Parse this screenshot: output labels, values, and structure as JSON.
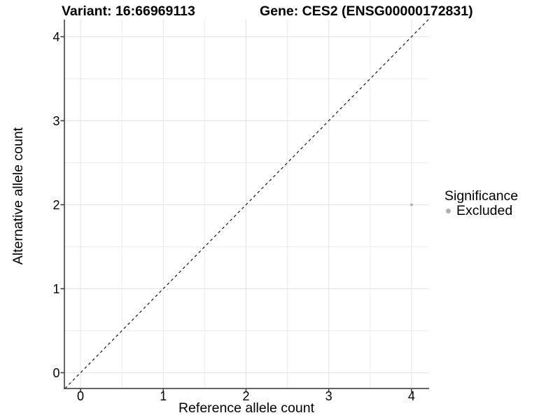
{
  "titles": {
    "variant": "Variant: 16:66969113",
    "gene": "Gene: CES2 (ENSG00000172831)"
  },
  "chart_data": {
    "type": "scatter",
    "title_left": "Variant: 16:66969113",
    "title_right": "Gene: CES2 (ENSG00000172831)",
    "xlabel": "Reference allele count",
    "ylabel": "Alternative allele count",
    "xlim": [
      -0.195,
      4.204
    ],
    "ylim": [
      -0.188,
      4.204
    ],
    "x_ticks": [
      0,
      1,
      2,
      3,
      4
    ],
    "y_ticks": [
      0,
      1,
      2,
      3,
      4
    ],
    "x_minor": [
      0.5,
      1.5,
      2.5,
      3.5
    ],
    "y_minor": [
      0.5,
      1.5,
      2.5,
      3.5
    ],
    "grid": true,
    "series": [
      {
        "name": "Excluded",
        "color": "#b0b0b0",
        "point_radius": 2,
        "points": [
          {
            "x": 4,
            "y": 2
          }
        ]
      }
    ],
    "reference_line": {
      "kind": "identity",
      "slope": 1,
      "intercept": 0,
      "style": "dashed",
      "color": "#000000"
    },
    "legend": {
      "title": "Significance",
      "entries": [
        "Excluded"
      ],
      "position": "right"
    }
  },
  "colors": {
    "background": "#ffffff",
    "axis_line": "#333333",
    "grid_major": "#e4e4e4",
    "grid_minor": "#ededed",
    "tick_text": "#000000",
    "point": "#b0b0b0",
    "legend_key": "#b0b0b0"
  }
}
